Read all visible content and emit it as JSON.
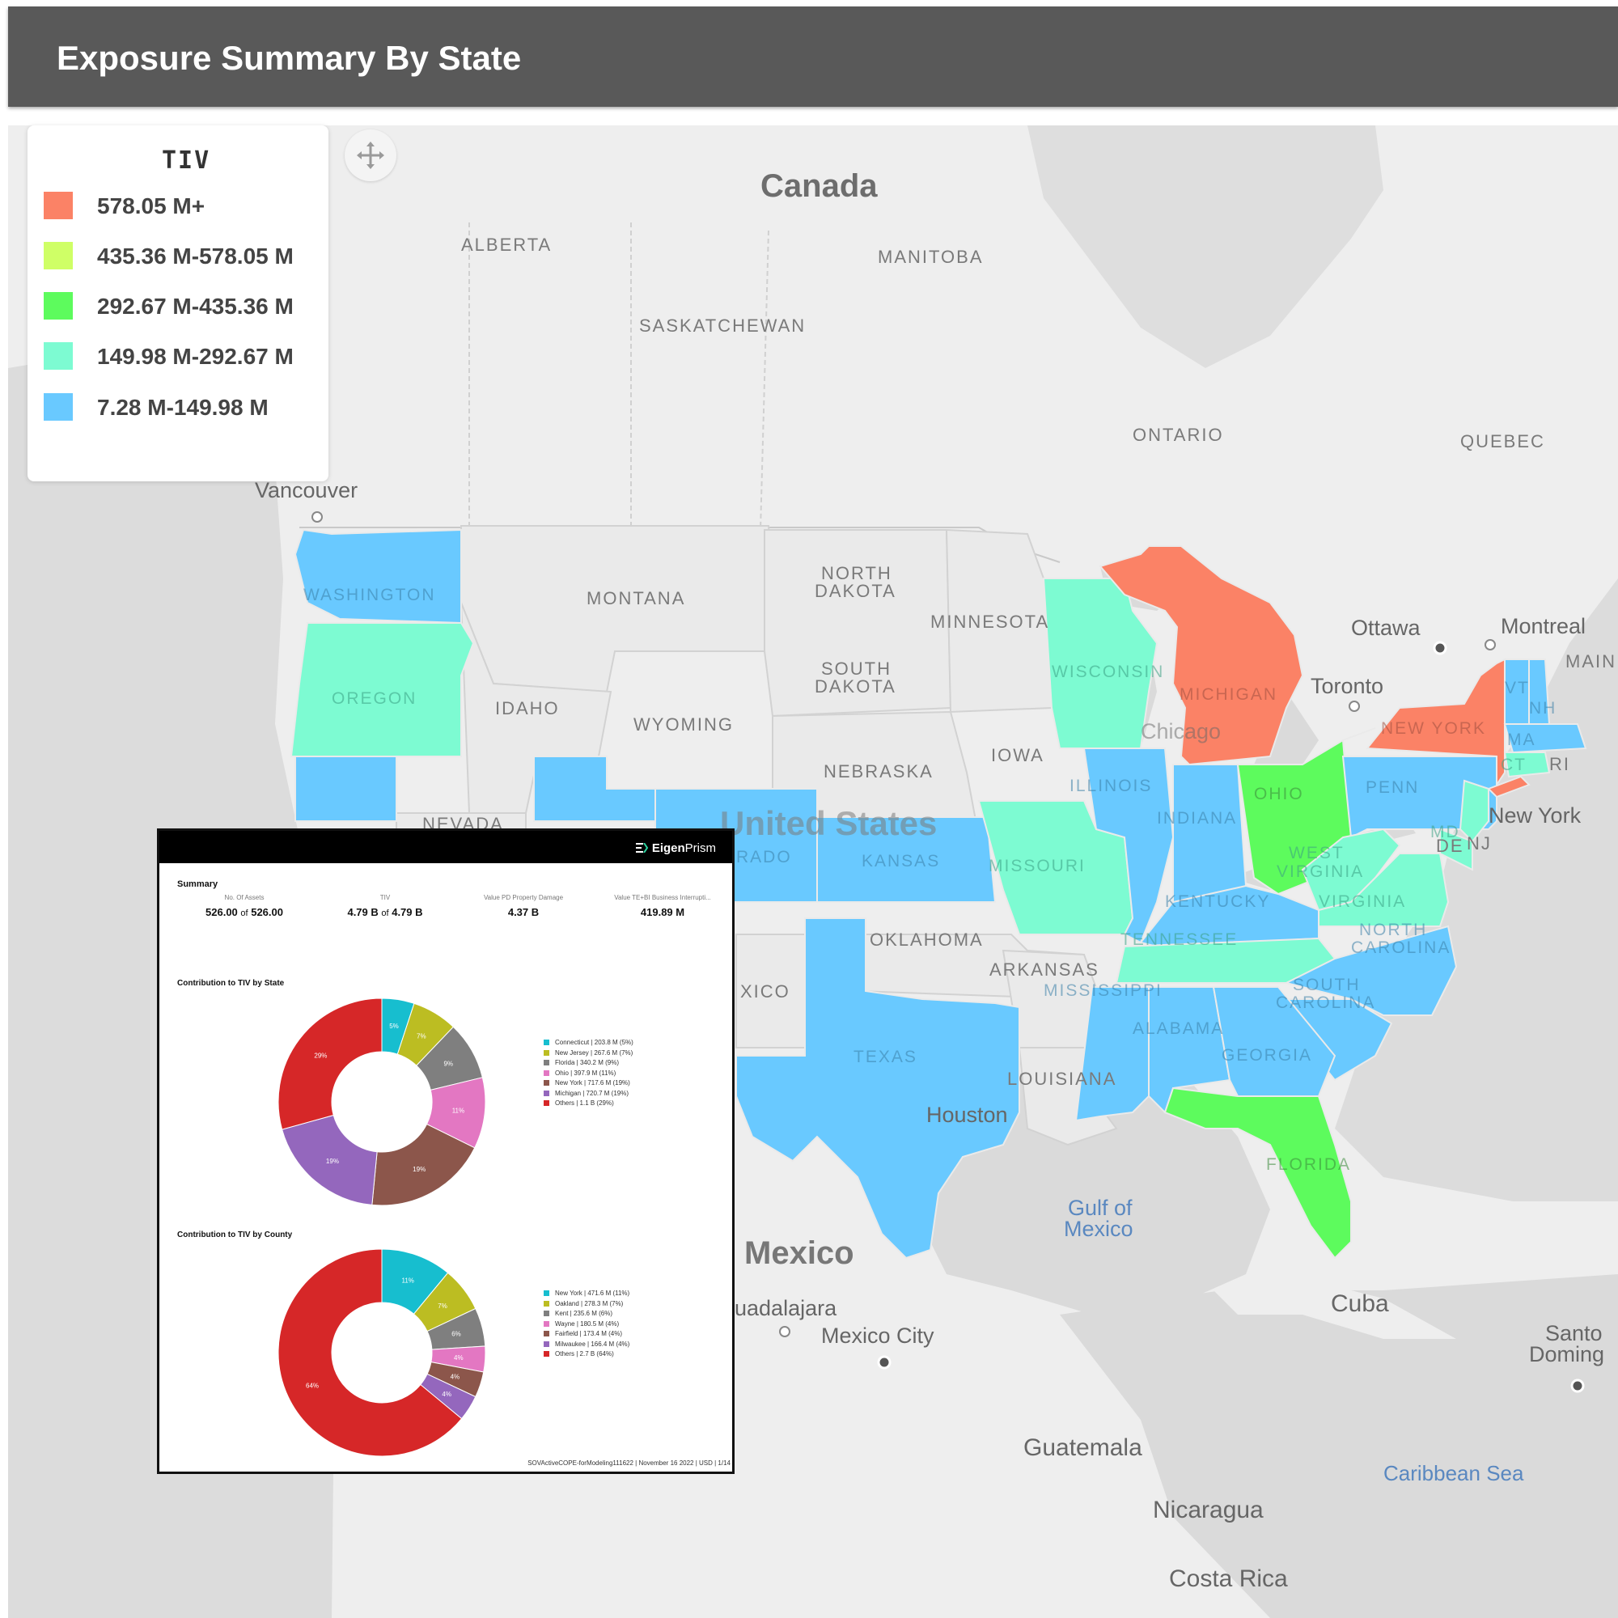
{
  "header": {
    "title": "Exposure Summary By State"
  },
  "legend": {
    "title": "TIV",
    "items": [
      {
        "label": "578.05 M+",
        "color": "#fb8266"
      },
      {
        "label": "435.36 M-578.05 M",
        "color": "#cfff66"
      },
      {
        "label": "292.67 M-435.36 M",
        "color": "#5dfb5d"
      },
      {
        "label": "149.98 M-292.67 M",
        "color": "#7dfbd2"
      },
      {
        "label": "7.28 M-149.98 M",
        "color": "#69c9ff"
      }
    ]
  },
  "map": {
    "labels": {
      "canada": "Canada",
      "alberta": "ALBERTA",
      "manitoba": "MANITOBA",
      "saskatchewan": "SASKATCHEWAN",
      "ontario": "ONTARIO",
      "quebec": "QUEBEC",
      "vancouver": "Vancouver",
      "ottawa": "Ottawa",
      "montreal": "Montreal",
      "toronto": "Toronto",
      "maine": "MAIN",
      "new_york_city": "New York",
      "nj": "NJ",
      "de": "DE",
      "ri": "RI",
      "montana": "MONTANA",
      "north_dakota_1": "NORTH",
      "north_dakota_2": "DAKOTA",
      "south_dakota_1": "SOUTH",
      "south_dakota_2": "DAKOTA",
      "minnesota": "MINNESOTA",
      "idaho": "IDAHO",
      "wyoming": "WYOMING",
      "nebraska": "NEBRASKA",
      "iowa": "IOWA",
      "nevada": "NEVADA",
      "united_states": "United States",
      "rado": "RADO",
      "kansas": "KANSAS",
      "oklahoma": "OKLAHOMA",
      "arkansas": "ARKANSAS",
      "xico": "XICO",
      "texas": "TEXAS",
      "louisiana": "LOUISIANA",
      "houston": "Houston",
      "washington": "WASHINGTON",
      "oregon": "OREGON",
      "wisconsin": "WISCONSIN",
      "michigan": "MICHIGAN",
      "chicago": "Chicago",
      "illinois": "ILLINOIS",
      "indiana": "INDIANA",
      "ohio": "OHIO",
      "penn": "PENN",
      "new_york": "NEW YORK",
      "vt": "VT",
      "nh": "NH",
      "ma": "MA",
      "ct": "CT",
      "md": "MD",
      "west_virginia_1": "WEST",
      "west_virginia_2": "VIRGINIA",
      "virginia": "VIRGINIA",
      "kentucky": "KENTUCKY",
      "tennessee": "TENNESSEE",
      "north_carolina_1": "NORTH",
      "north_carolina_2": "CAROLINA",
      "south_carolina_1": "SOUTH",
      "south_carolina_2": "CAROLINA",
      "missouri": "MISSOURI",
      "mississippi": "MISSISSIPPI",
      "alabama": "ALABAMA",
      "georgia": "GEORGIA",
      "florida": "FLORIDA",
      "gulf_1": "Gulf of",
      "gulf_2": "Mexico",
      "mexico": "Mexico",
      "guadalajara": "uadalajara",
      "mexico_city": "Mexico City",
      "cuba": "Cuba",
      "santo_1": "Santo",
      "santo_2": "Doming",
      "guatemala": "Guatemala",
      "caribbean": "Caribbean Sea",
      "nicaragua": "Nicaragua",
      "costa_rica": "Costa Rica"
    }
  },
  "report": {
    "logo": {
      "bold": "Eigen",
      "light": "Prism"
    },
    "summary_title": "Summary",
    "metrics": [
      {
        "label": "No. Of Assets",
        "value": "526.00",
        "of": "of",
        "total": "526.00"
      },
      {
        "label": "TIV",
        "value": "4.79 B",
        "of": "of",
        "total": "4.79 B"
      },
      {
        "label": "Value PD Property Damage",
        "value": "4.37 B"
      },
      {
        "label": "Value TE+BI Business Interrupti...",
        "value": "419.89 M"
      }
    ],
    "footer": "SOVActiveCOPE-forModeling111622 | November 16 2022 | USD | 1/14"
  },
  "chart_data": [
    {
      "type": "pie",
      "title": "Contribution to TIV by State",
      "labels": [
        "Connecticut",
        "New Jersey",
        "Florida",
        "Ohio",
        "New York",
        "Michigan",
        "Others"
      ],
      "legend_text": [
        "Connecticut | 203.8 M (5%)",
        "New Jersey | 267.6 M (7%)",
        "Florida | 340.2 M (9%)",
        "Ohio | 397.9 M (11%)",
        "New York | 717.6 M (19%)",
        "Michigan | 720.7 M (19%)",
        "Others | 1.1 B (29%)"
      ],
      "values": [
        5,
        7,
        9,
        11,
        19,
        19,
        29
      ],
      "slice_labels": [
        "5%",
        "7%",
        "9%",
        "11%",
        "19%",
        "19%",
        "29%"
      ],
      "colors": [
        "#17becf",
        "#bcbd22",
        "#7f7f7f",
        "#e377c2",
        "#8c564b",
        "#9467bd",
        "#d62728"
      ],
      "donut": true,
      "legend_position": "right"
    },
    {
      "type": "pie",
      "title": "Contribution to TIV by County",
      "labels": [
        "New York",
        "Oakland",
        "Kent",
        "Wayne",
        "Fairfield",
        "Milwaukee",
        "Others"
      ],
      "legend_text": [
        "New York | 471.6 M (11%)",
        "Oakland | 278.3 M (7%)",
        "Kent | 235.6 M (6%)",
        "Wayne | 180.5 M (4%)",
        "Fairfield | 173.4 M (4%)",
        "Milwaukee | 166.4 M (4%)",
        "Others | 2.7 B (64%)"
      ],
      "values": [
        11,
        7,
        6,
        4,
        4,
        4,
        64
      ],
      "slice_labels": [
        "11%",
        "7%",
        "6%",
        "4%",
        "4%",
        "4%",
        "64%"
      ],
      "colors": [
        "#17becf",
        "#bcbd22",
        "#7f7f7f",
        "#e377c2",
        "#8c564b",
        "#9467bd",
        "#d62728"
      ],
      "donut": true,
      "legend_position": "right"
    }
  ]
}
